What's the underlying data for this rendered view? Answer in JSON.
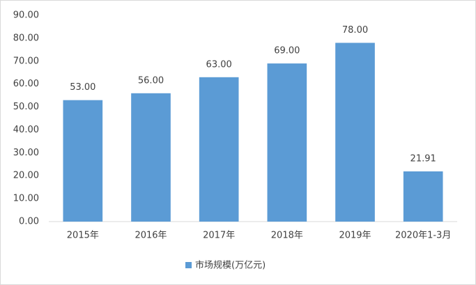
{
  "chart_data": {
    "type": "bar",
    "categories": [
      "2015年",
      "2016年",
      "2017年",
      "2018年",
      "2019年",
      "2020年1-3月"
    ],
    "series": [
      {
        "name": "市场规模(万亿元)",
        "color": "#5b9bd5",
        "values": [
          53,
          56,
          63,
          69,
          78,
          21.91
        ],
        "value_labels": [
          "53.00",
          "56.00",
          "63.00",
          "69.00",
          "78.00",
          "21.91"
        ]
      }
    ],
    "ylim": [
      0,
      90
    ],
    "yticks": [
      {
        "value": 0,
        "label": "0.00"
      },
      {
        "value": 10,
        "label": "10.00"
      },
      {
        "value": 20,
        "label": "20.00"
      },
      {
        "value": 30,
        "label": "30.00"
      },
      {
        "value": 40,
        "label": "40.00"
      },
      {
        "value": 50,
        "label": "50.00"
      },
      {
        "value": 60,
        "label": "60.00"
      },
      {
        "value": 70,
        "label": "70.00"
      },
      {
        "value": 80,
        "label": "80.00"
      },
      {
        "value": 90,
        "label": "90.00"
      }
    ],
    "grid": false,
    "legend": "bottom"
  }
}
